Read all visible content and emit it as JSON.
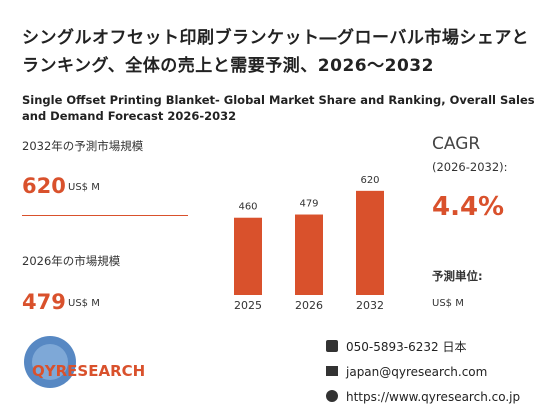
{
  "header": {
    "title": "シングルオフセット印刷ブランケット―グローバル市場シェアとランキング、全体の売上と需要予測、2026～2032",
    "subtitle": "Single Offset Printing Blanket- Global Market Share and Ranking, Overall Sales and Demand Forecast 2026-2032"
  },
  "stats": {
    "forecast_label": "2032年の予測市場規模",
    "forecast_value": 620,
    "forecast_unit": "US$ M",
    "current_label": "2026年の市場規模",
    "current_value": 479,
    "current_unit": "US$ M",
    "cagr_label": "CAGR",
    "cagr_period": "(2026-2032):",
    "cagr_value": "4.4%",
    "unit_label": "予測単位:",
    "unit_value": "US$ M"
  },
  "chart_data": {
    "type": "bar",
    "categories": [
      "2025",
      "2026",
      "2032"
    ],
    "values": [
      460,
      479,
      620
    ],
    "color": "#d9512c"
  },
  "logo": {
    "text": "QYRESEARCH"
  },
  "contact": {
    "phone": "050-5893-6232 日本",
    "email": "japan@qyresearch.com",
    "web": "https://www.qyresearch.co.jp"
  }
}
